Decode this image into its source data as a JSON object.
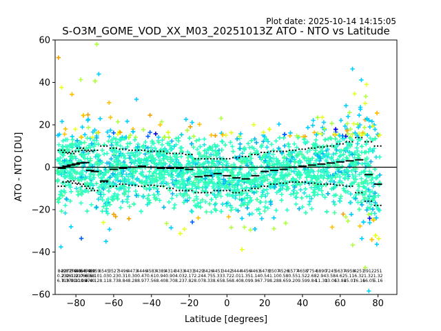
{
  "plot_date_label": "Plot date: 2025-10-14 14:15:05",
  "chart_data": {
    "type": "scatter",
    "title": "S-O3M_GOME_VOD_XX_M03_20251013Z ATO - NTO vs Latitude",
    "xlabel": "Latitude [degrees]",
    "ylabel": "ATO - NTO [DU]",
    "xlim": [
      -91,
      90
    ],
    "ylim": [
      -60,
      60
    ],
    "xticks": [
      -80,
      -60,
      -40,
      -20,
      0,
      20,
      40,
      60,
      80
    ],
    "xtick_labels": [
      "−80",
      "−60",
      "−40",
      "−20",
      "0",
      "20",
      "40",
      "60",
      "80"
    ],
    "yticks": [
      -60,
      -40,
      -20,
      0,
      20,
      40,
      60
    ],
    "ytick_labels": [
      "−60",
      "−40",
      "−20",
      "0",
      "20",
      "40",
      "60"
    ],
    "zero_line": 0,
    "point_colors": [
      "#30ffc8",
      "#28ffb0",
      "#44ffa0",
      "#00d0ff",
      "#00b8f0",
      "#20e0e8",
      "#b0ff40",
      "#e8ff20",
      "#ffc000",
      "#f0a000",
      "#0060ff",
      "#0000e0"
    ],
    "bins": [
      {
        "lat": -87.5,
        "mean": -0.5,
        "std_hi": 8,
        "std_lo": -9,
        "n": "840",
        "m": "0.23",
        "s": "6.71"
      },
      {
        "lat": -85.0,
        "mean": 0.5,
        "std_hi": 7,
        "std_lo": -7,
        "n": "2272",
        "m": "2.06",
        "s": "8.37"
      },
      {
        "lat": -82.5,
        "mean": 1.0,
        "std_hi": 6.5,
        "std_lo": -6.5,
        "n": "8779",
        "m": "2.01",
        "s": "9.91"
      },
      {
        "lat": -80.0,
        "mean": 1.5,
        "std_hi": 7.5,
        "std_lo": -7.5,
        "n": "3446",
        "m": "1.91",
        "s": "0.11"
      },
      {
        "lat": -77.5,
        "mean": 2.0,
        "std_hi": 9,
        "std_lo": -8,
        "n": "5064",
        "m": "2.06",
        "s": "10.09"
      },
      {
        "lat": -75.0,
        "mean": 2.2,
        "std_hi": 8,
        "std_lo": -9,
        "n": "6479",
        "m": "7.65",
        "s": "9.47"
      },
      {
        "lat": -72.5,
        "mean": -1.5,
        "std_hi": 7.5,
        "std_lo": -10,
        "n": "6460",
        "m": "6.58",
        "s": "9.40"
      },
      {
        "lat": -70.0,
        "mean": -2.0,
        "std_hi": 8,
        "std_lo": -11,
        "n": "8959",
        "m": "6.10",
        "s": "0.12"
      },
      {
        "lat": -65.0,
        "mean": -6.5,
        "std_hi": 10,
        "std_lo": -7,
        "n": "6545",
        "m": "1.03",
        "s": "8.11"
      },
      {
        "lat": -60.0,
        "mean": -1.0,
        "std_hi": 9,
        "std_lo": -9,
        "n": "3527",
        "m": "0.23",
        "s": "8.73"
      },
      {
        "lat": -55.0,
        "mean": -0.5,
        "std_hi": 8.5,
        "std_lo": -8,
        "n": "3496",
        "m": "0.31",
        "s": "8.84"
      },
      {
        "lat": -50.0,
        "mean": 0.0,
        "std_hi": 8,
        "std_lo": -8.5,
        "n": "4473",
        "m": "0.30",
        "s": "8.28"
      },
      {
        "lat": -45.0,
        "mean": 0.5,
        "std_hi": 8,
        "std_lo": -9,
        "n": "4446",
        "m": "0.47",
        "s": "8.97"
      },
      {
        "lat": -40.0,
        "mean": 0.0,
        "std_hi": 7.5,
        "std_lo": -8.5,
        "n": "4583",
        "m": "0.61",
        "s": "7.56"
      },
      {
        "lat": -35.0,
        "mean": -0.5,
        "std_hi": 7.5,
        "std_lo": -9,
        "n": "4389",
        "m": "0.94",
        "s": "8.40"
      },
      {
        "lat": -30.0,
        "mean": -0.5,
        "std_hi": 6.5,
        "std_lo": -10,
        "n": "4314",
        "m": "0.90",
        "s": "8.70"
      },
      {
        "lat": -25.0,
        "mean": -0.5,
        "std_hi": 6.5,
        "std_lo": -11,
        "n": "3433",
        "m": "4.03",
        "s": "8.23"
      },
      {
        "lat": -20.0,
        "mean": -1.0,
        "std_hi": 6,
        "std_lo": -11,
        "n": "4433",
        "m": "2.17",
        "s": "7.82"
      },
      {
        "lat": -15.0,
        "mean": -4.5,
        "std_hi": 4,
        "std_lo": -12,
        "n": "3429",
        "m": "2.24",
        "s": "8.07"
      },
      {
        "lat": -10.0,
        "mean": -4.0,
        "std_hi": 4,
        "std_lo": -12,
        "n": "3426",
        "m": "4.75",
        "s": "8.33"
      },
      {
        "lat": -5.0,
        "mean": -3.0,
        "std_hi": 4,
        "std_lo": -11,
        "n": "4451",
        "m": "5.33",
        "s": "8.65"
      },
      {
        "lat": 0.0,
        "mean": -4.0,
        "std_hi": 4,
        "std_lo": -11,
        "n": "3442",
        "m": "3.72",
        "s": "8.56"
      },
      {
        "lat": 5.0,
        "mean": -5.0,
        "std_hi": 4.5,
        "std_lo": -12,
        "n": "3444",
        "m": "2.01",
        "s": "8.40"
      },
      {
        "lat": 10.0,
        "mean": -5.5,
        "std_hi": 5,
        "std_lo": -11,
        "n": "4456",
        "m": "1.35",
        "s": "8.09"
      },
      {
        "lat": 15.0,
        "mean": -4.0,
        "std_hi": 6,
        "std_lo": -10,
        "n": "4463",
        "m": "1.14",
        "s": "9.96"
      },
      {
        "lat": 20.0,
        "mean": -2.0,
        "std_hi": 7,
        "std_lo": -9,
        "n": "6478",
        "m": "0.54",
        "s": "7.79"
      },
      {
        "lat": 25.0,
        "mean": -1.5,
        "std_hi": 7.5,
        "std_lo": -8,
        "n": "3507",
        "m": "1.10",
        "s": "8.28"
      },
      {
        "lat": 30.0,
        "mean": -1.0,
        "std_hi": 7.5,
        "std_lo": -7.5,
        "n": "4526",
        "m": "0.58",
        "s": "8.65"
      },
      {
        "lat": 35.0,
        "mean": 0.0,
        "std_hi": 8,
        "std_lo": -7,
        "n": "6577",
        "m": "0.55",
        "s": "9.20"
      },
      {
        "lat": 40.0,
        "mean": 0.5,
        "std_hi": 8.5,
        "std_lo": -7,
        "n": "4658",
        "m": "1.52",
        "s": "9.59"
      },
      {
        "lat": 45.0,
        "mean": 1.0,
        "std_hi": 9,
        "std_lo": -7.5,
        "n": "7754",
        "m": "2.68",
        "s": "9.84"
      },
      {
        "lat": 50.0,
        "mean": 1.5,
        "std_hi": 9.5,
        "std_lo": -8,
        "n": "6890",
        "m": "2.94",
        "s": "11.30"
      },
      {
        "lat": 55.0,
        "mean": 2.0,
        "std_hi": 10,
        "std_lo": -8,
        "n": "7245",
        "m": "3.58",
        "s": "13.06"
      },
      {
        "lat": 60.0,
        "mean": 2.5,
        "std_hi": 11,
        "std_lo": -8.5,
        "n": "5637",
        "m": "4.62",
        "s": "13.84"
      },
      {
        "lat": 65.0,
        "mean": 3.0,
        "std_hi": 12,
        "std_lo": -9,
        "n": "4958",
        "m": "5.11",
        "s": "15.07"
      },
      {
        "lat": 70.0,
        "mean": 3.5,
        "std_hi": 14,
        "std_lo": -12,
        "n": "4251",
        "m": "6.32",
        "s": "16.16"
      },
      {
        "lat": 75.0,
        "mean": -3.5,
        "std_hi": 12,
        "std_lo": -16,
        "n": "3912",
        "m": "1.32",
        "s": "16.05"
      },
      {
        "lat": 80.0,
        "mean": -8.0,
        "std_hi": 10,
        "std_lo": -18,
        "n": "251",
        "m": "1.32",
        "s": "5.16"
      }
    ]
  }
}
